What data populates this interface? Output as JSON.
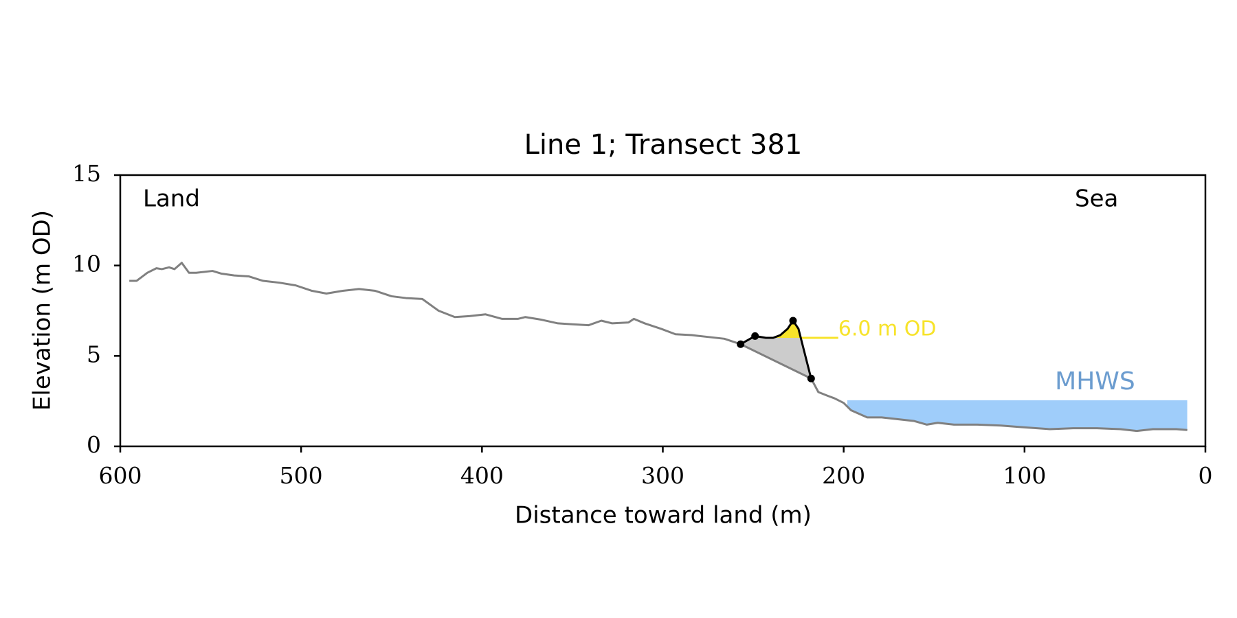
{
  "chart_data": {
    "type": "line",
    "title": "Line 1; Transect 381",
    "x_label": "Distance toward land (m)",
    "y_label": "Elevation (m OD)",
    "annotations": [
      "Land",
      "Sea"
    ],
    "xlim": [
      600,
      0
    ],
    "ylim": [
      0,
      15
    ],
    "xticks": [
      600,
      500,
      400,
      300,
      200,
      100,
      0
    ],
    "yticks": [
      0,
      5,
      10,
      15
    ],
    "profile": {
      "color": "#808080",
      "x": [
        595,
        591,
        585,
        580,
        577,
        573,
        570,
        566,
        562,
        558,
        549,
        544,
        537,
        529,
        521,
        512,
        503,
        494,
        486,
        477,
        468,
        459,
        450,
        442,
        433,
        424,
        415,
        407,
        398,
        389,
        380,
        376,
        367,
        358,
        350,
        341,
        334,
        328,
        319,
        316,
        310,
        301,
        293,
        284,
        275,
        266,
        257,
        218,
        214,
        209,
        205,
        200,
        196,
        187,
        179,
        170,
        161,
        154,
        148,
        139,
        126,
        113,
        100,
        86,
        73,
        60,
        47,
        38,
        29,
        16,
        10
      ],
      "values": [
        9.15,
        9.15,
        9.6,
        9.85,
        9.8,
        9.9,
        9.8,
        10.15,
        9.6,
        9.6,
        9.7,
        9.55,
        9.45,
        9.4,
        9.15,
        9.05,
        8.9,
        8.6,
        8.45,
        8.6,
        8.7,
        8.6,
        8.3,
        8.2,
        8.15,
        7.5,
        7.15,
        7.2,
        7.3,
        7.05,
        7.05,
        7.15,
        7.0,
        6.8,
        6.75,
        6.7,
        6.95,
        6.8,
        6.85,
        7.05,
        6.8,
        6.5,
        6.2,
        6.15,
        6.05,
        5.95,
        5.65,
        3.75,
        3.0,
        2.8,
        2.65,
        2.4,
        2.0,
        1.6,
        1.6,
        1.5,
        1.4,
        1.2,
        1.3,
        1.2,
        1.2,
        1.15,
        1.05,
        0.95,
        1.0,
        1.0,
        0.95,
        0.85,
        0.95,
        0.95,
        0.9
      ]
    },
    "dune": {
      "color": "#000000",
      "fill_below": "#cccccc",
      "fill_above": "#f7e32a",
      "x": [
        257,
        249,
        243,
        239,
        235,
        231,
        228,
        225,
        218
      ],
      "values": [
        5.65,
        6.1,
        6.0,
        6.0,
        6.15,
        6.5,
        6.95,
        6.5,
        3.75
      ]
    },
    "dune_points": {
      "color": "#000000",
      "x": [
        257,
        249,
        228,
        218
      ],
      "values": [
        5.65,
        6.1,
        6.95,
        3.75
      ]
    },
    "threshold": {
      "value": 6.0,
      "label": "6.0 m OD",
      "x": [
        224,
        203
      ],
      "color": "#f7e32a"
    },
    "mhws": {
      "value": 2.55,
      "label": "MHWS",
      "x": [
        198,
        10
      ],
      "color": "#9fcdfa",
      "label_color": "#6b9ccf"
    }
  }
}
